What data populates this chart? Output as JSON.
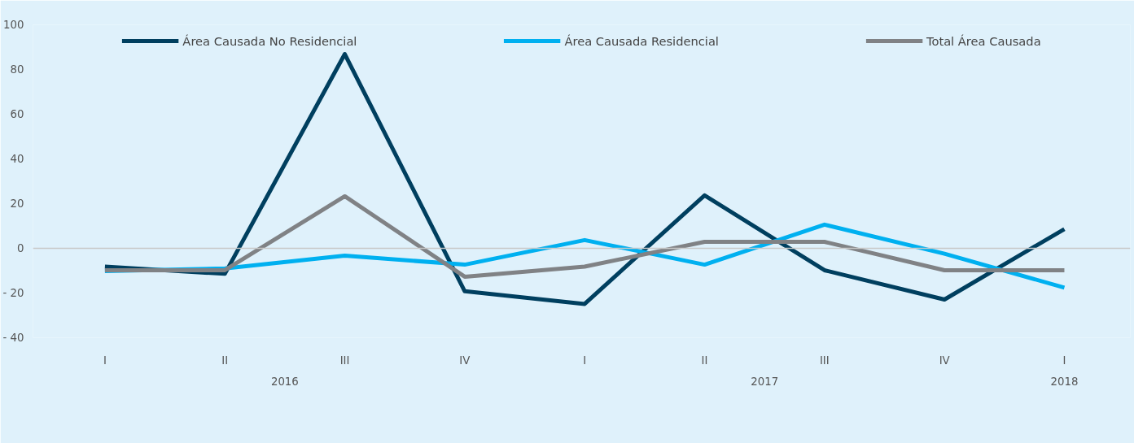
{
  "chart_data": {
    "type": "line",
    "categories": [
      "I",
      "II",
      "III",
      "IV",
      "I",
      "II",
      "III",
      "IV",
      "I"
    ],
    "series": [
      {
        "name": "Área Causada No Residencial",
        "color": "#003f5f",
        "values": [
          -8.2,
          -11.4,
          86.9,
          -19.2,
          -24.9,
          23.7,
          -9.8,
          -22.9,
          8.6
        ]
      },
      {
        "name": "Área Causada Residencial",
        "color": "#00b0f0",
        "values": [
          -10.2,
          -9,
          -3.3,
          -7.3,
          3.7,
          -7.3,
          10.6,
          -2.4,
          -17.6
        ]
      },
      {
        "name": "Total Área Causada",
        "color": "#808285",
        "values": [
          -9.8,
          -9.8,
          23.3,
          -12.7,
          -8.2,
          2.9,
          2.9,
          -9.8,
          -9.8
        ]
      }
    ],
    "annotations": [
      "2016",
      "2017",
      "2018"
    ],
    "ylim": [
      -40,
      100
    ],
    "yticks": [
      {
        "value": -40,
        "label": "- 40"
      },
      {
        "value": -20,
        "label": "- 20"
      },
      0,
      20,
      40,
      60,
      80,
      100
    ],
    "ref_lines": [
      {
        "axis": "y",
        "value": 0,
        "color": "#c8c8c8"
      }
    ],
    "grid": false,
    "legend": "top",
    "marker": "none",
    "line_style": "solid"
  }
}
